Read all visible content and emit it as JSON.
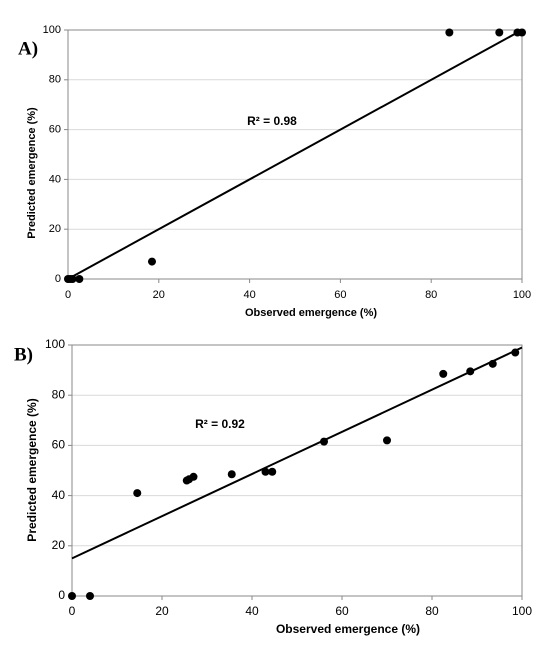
{
  "chart_data": [
    {
      "type": "scatter",
      "panel_label": "A)",
      "annotation": "R² = 0.98",
      "x_label": "Observed emergence (%)",
      "y_label": "Predicted emergence (%)",
      "x": [
        0,
        0.5,
        1,
        2.5,
        18.5,
        84,
        95,
        99,
        100
      ],
      "values": [
        0,
        0,
        0,
        0,
        7,
        99,
        99,
        99,
        99
      ],
      "trendline": {
        "x": [
          0,
          100
        ],
        "values": [
          0,
          100
        ]
      },
      "color": "#000000",
      "xlim": [
        0,
        100
      ],
      "ylim": [
        0,
        100
      ],
      "xticks": [
        0,
        20,
        40,
        60,
        80,
        100
      ],
      "yticks": [
        0,
        20,
        40,
        60,
        80,
        100
      ],
      "grid": true
    },
    {
      "type": "scatter",
      "panel_label": "B)",
      "annotation": "R² = 0.92",
      "x_label": "Observed emergence (%)",
      "y_label": "Predicted emergence (%)",
      "x": [
        0,
        4,
        14.5,
        25.5,
        26,
        27,
        35.5,
        43,
        44.5,
        56,
        70,
        82.5,
        88.5,
        93.5,
        98.5
      ],
      "values": [
        0,
        0,
        41,
        46,
        46.5,
        47.5,
        48.5,
        49.5,
        49.5,
        61.5,
        62,
        88.5,
        89.5,
        92.5,
        97
      ],
      "trendline": {
        "x": [
          0,
          100
        ],
        "values": [
          15,
          99
        ]
      },
      "color": "#000000",
      "xlim": [
        0,
        100
      ],
      "ylim": [
        0,
        100
      ],
      "xticks": [
        0,
        20,
        40,
        60,
        80,
        100
      ],
      "yticks": [
        0,
        20,
        40,
        60,
        80,
        100
      ],
      "grid": true
    }
  ]
}
